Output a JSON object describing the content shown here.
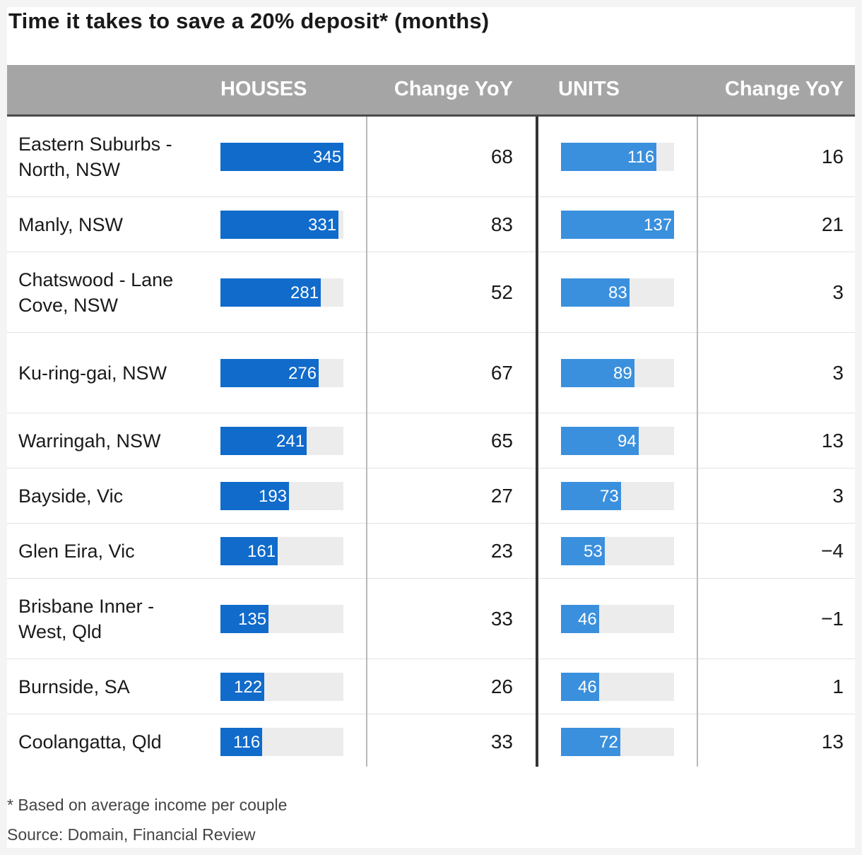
{
  "title": "Time it takes to save a 20% deposit* (months)",
  "headers": {
    "houses": "HOUSES",
    "houses_change": "Change YoY",
    "units": "UNITS",
    "units_change": "Change YoY"
  },
  "colors": {
    "houses_bar": "#106bcb",
    "units_bar": "#3a90dd",
    "track": "#ececec",
    "header_bg": "#a5a5a5"
  },
  "footnote": "* Based on average income per couple",
  "source": "Source: Domain, Financial Review",
  "chart_data": {
    "type": "table",
    "title": "Time it takes to save a 20% deposit* (months)",
    "columns": [
      "HOUSES",
      "Change YoY",
      "UNITS",
      "Change YoY"
    ],
    "houses_max": 345,
    "units_max": 137,
    "rows": [
      {
        "name": "Eastern Suburbs - North, NSW",
        "houses": 345,
        "houses_label": "345",
        "houses_change": "68",
        "units": 116,
        "units_label": "116",
        "units_change": "16"
      },
      {
        "name": "Manly, NSW",
        "houses": 331,
        "houses_label": "331",
        "houses_change": "83",
        "units": 137,
        "units_label": "137",
        "units_change": "21"
      },
      {
        "name": "Chatswood - Lane Cove, NSW",
        "houses": 281,
        "houses_label": "281",
        "houses_change": "52",
        "units": 83,
        "units_label": "83",
        "units_change": "3"
      },
      {
        "name": "Ku-ring-gai, NSW",
        "houses": 276,
        "houses_label": "276",
        "houses_change": "67",
        "units": 89,
        "units_label": "89",
        "units_change": "3"
      },
      {
        "name": "Warringah, NSW",
        "houses": 241,
        "houses_label": "241",
        "houses_change": "65",
        "units": 94,
        "units_label": "94",
        "units_change": "13"
      },
      {
        "name": "Bayside, Vic",
        "houses": 193,
        "houses_label": "193",
        "houses_change": "27",
        "units": 73,
        "units_label": "73",
        "units_change": "3"
      },
      {
        "name": "Glen Eira, Vic",
        "houses": 161,
        "houses_label": "161",
        "houses_change": "23",
        "units": 53,
        "units_label": "53",
        "units_change": "−4"
      },
      {
        "name": "Brisbane Inner - West, Qld",
        "houses": 135,
        "houses_label": "135",
        "houses_change": "33",
        "units": 46,
        "units_label": "46",
        "units_change": "−1"
      },
      {
        "name": "Burnside, SA",
        "houses": 122,
        "houses_label": "122",
        "houses_change": "26",
        "units": 46,
        "units_label": "46",
        "units_change": "1"
      },
      {
        "name": "Coolangatta, Qld",
        "houses": 116,
        "houses_label": "116",
        "houses_change": "33",
        "units": 72,
        "units_label": "72",
        "units_change": "13"
      }
    ]
  }
}
